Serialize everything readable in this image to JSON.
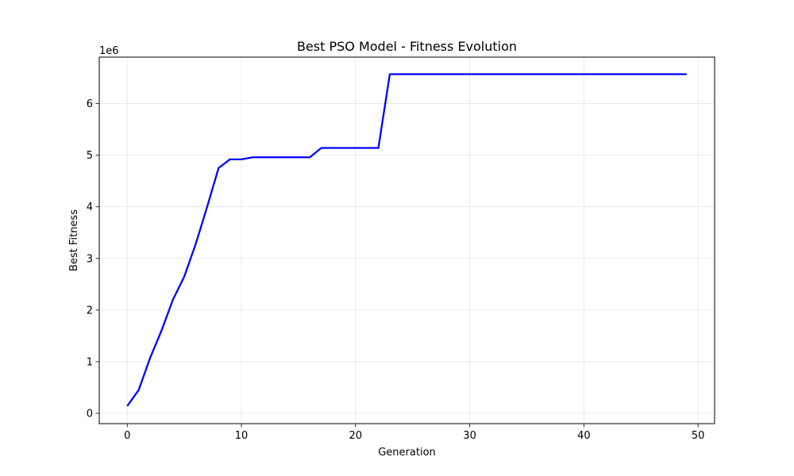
{
  "chart_data": {
    "type": "line",
    "title": "Best PSO Model - Fitness Evolution",
    "xlabel": "Generation",
    "ylabel": "Best Fitness",
    "y_offset_label": "1e6",
    "xlim": [
      -2.45,
      51.45
    ],
    "ylim": [
      -0.2,
      6.9
    ],
    "x_ticks": [
      0,
      10,
      20,
      30,
      40,
      50
    ],
    "y_ticks": [
      0,
      1,
      2,
      3,
      4,
      5,
      6
    ],
    "grid": true,
    "line_color": "#0000ff",
    "series": [
      {
        "x": [
          0,
          1,
          2,
          3,
          4,
          5,
          6,
          7,
          8,
          9,
          10,
          11,
          12,
          13,
          14,
          15,
          16,
          17,
          18,
          19,
          20,
          21,
          22,
          23,
          24,
          25,
          26,
          27,
          28,
          29,
          30,
          31,
          32,
          33,
          34,
          35,
          36,
          37,
          38,
          39,
          40,
          41,
          42,
          43,
          44,
          45,
          46,
          47,
          48,
          49
        ],
        "y": [
          0.14,
          0.45,
          1.07,
          1.6,
          2.2,
          2.65,
          3.28,
          4.0,
          4.75,
          4.92,
          4.92,
          4.96,
          4.96,
          4.96,
          4.96,
          4.96,
          4.96,
          5.14,
          5.14,
          5.14,
          5.14,
          5.14,
          5.14,
          6.57,
          6.57,
          6.57,
          6.57,
          6.57,
          6.57,
          6.57,
          6.57,
          6.57,
          6.57,
          6.57,
          6.57,
          6.57,
          6.57,
          6.57,
          6.57,
          6.57,
          6.57,
          6.57,
          6.57,
          6.57,
          6.57,
          6.57,
          6.57,
          6.57,
          6.57,
          6.57
        ]
      }
    ]
  }
}
